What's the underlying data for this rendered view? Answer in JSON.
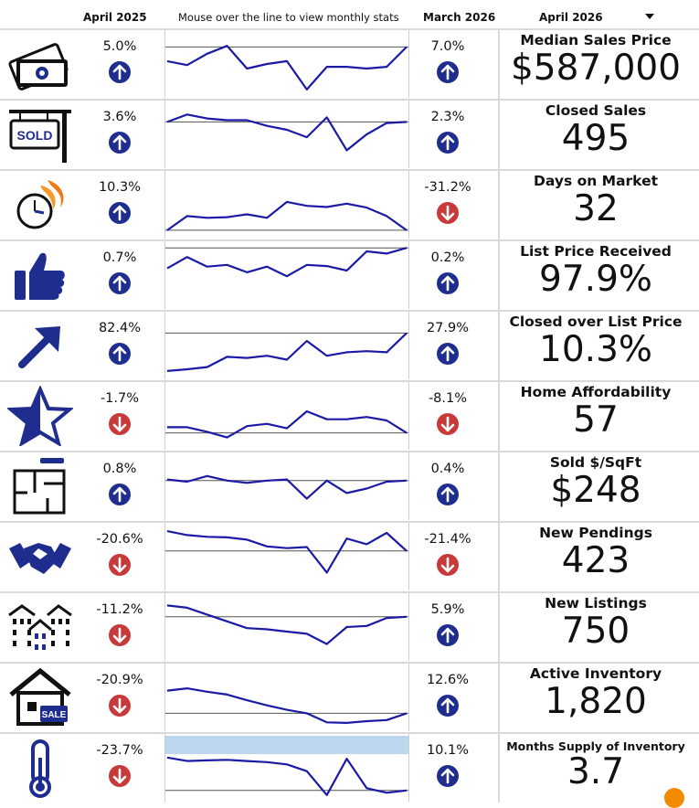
{
  "header": {
    "col_a": "April 2025",
    "spark_hint": "Mouse over the line to view monthly stats",
    "col_b": "March 2026",
    "period_select": "April 2026"
  },
  "colors": {
    "up": "#1f2d8f",
    "down": "#c8393a",
    "line": "#1a1aa6",
    "hover_band": "#bcd6ee"
  },
  "rows": [
    {
      "icon": "money-icon",
      "pct_a": "5.0%",
      "dir_a": "up",
      "pct_b": "7.0%",
      "dir_b": "up",
      "title": "Median Sales Price",
      "value": "$587,000",
      "trend": [
        0.55,
        0.48,
        0.68,
        0.82,
        0.42,
        0.5,
        0.55,
        0.05,
        0.45,
        0.45,
        0.42,
        0.45,
        0.8
      ]
    },
    {
      "icon": "sold-sign-icon",
      "pct_a": "3.6%",
      "dir_a": "up",
      "pct_b": "2.3%",
      "dir_b": "up",
      "title": "Closed Sales",
      "value": "495",
      "trend": [
        0.72,
        0.85,
        0.78,
        0.75,
        0.75,
        0.65,
        0.58,
        0.45,
        0.8,
        0.22,
        0.5,
        0.7,
        0.72
      ]
    },
    {
      "icon": "stopwatch-icon",
      "pct_a": "10.3%",
      "dir_a": "up",
      "pct_b": "-31.2%",
      "dir_b": "down",
      "title": "Days on Market",
      "value": "32",
      "trend": [
        0.05,
        0.3,
        0.27,
        0.28,
        0.33,
        0.27,
        0.55,
        0.48,
        0.46,
        0.52,
        0.45,
        0.3,
        0.05
      ]
    },
    {
      "icon": "thumbs-up-icon",
      "pct_a": "0.7%",
      "dir_a": "up",
      "pct_b": "0.2%",
      "dir_b": "up",
      "title": "List Price Received",
      "value": "97.9%",
      "trend": [
        0.62,
        0.82,
        0.65,
        0.68,
        0.55,
        0.65,
        0.48,
        0.68,
        0.66,
        0.58,
        0.92,
        0.88,
        0.98
      ]
    },
    {
      "icon": "arrow-up-right-icon",
      "pct_a": "82.4%",
      "dir_a": "up",
      "pct_b": "27.9%",
      "dir_b": "up",
      "title": "Closed over List Price",
      "value": "10.3%",
      "trend": [
        0.05,
        0.08,
        0.12,
        0.3,
        0.28,
        0.32,
        0.25,
        0.58,
        0.32,
        0.38,
        0.4,
        0.38,
        0.72
      ]
    },
    {
      "icon": "star-icon",
      "pct_a": "-1.7%",
      "dir_a": "down",
      "pct_b": "-8.1%",
      "dir_b": "down",
      "title": "Home Affordability",
      "value": "57",
      "trend": [
        0.3,
        0.3,
        0.22,
        0.12,
        0.32,
        0.36,
        0.28,
        0.58,
        0.44,
        0.44,
        0.48,
        0.42,
        0.2
      ]
    },
    {
      "icon": "floor-plan-icon",
      "pct_a": "0.8%",
      "dir_a": "up",
      "pct_b": "0.4%",
      "dir_b": "up",
      "title": "Sold $/SqFt",
      "value": "$248",
      "trend": [
        0.62,
        0.58,
        0.68,
        0.6,
        0.56,
        0.6,
        0.62,
        0.28,
        0.6,
        0.38,
        0.46,
        0.58,
        0.6
      ]
    },
    {
      "icon": "handshake-icon",
      "pct_a": "-20.6%",
      "dir_a": "down",
      "pct_b": "-21.4%",
      "dir_b": "down",
      "title": "New Pendings",
      "value": "423",
      "trend": [
        0.95,
        0.88,
        0.85,
        0.84,
        0.8,
        0.68,
        0.65,
        0.67,
        0.22,
        0.82,
        0.72,
        0.92,
        0.6
      ]
    },
    {
      "icon": "buildings-icon",
      "pct_a": "-11.2%",
      "dir_a": "down",
      "pct_b": "5.9%",
      "dir_b": "up",
      "title": "New Listings",
      "value": "750",
      "trend": [
        0.88,
        0.84,
        0.72,
        0.6,
        0.48,
        0.46,
        0.42,
        0.38,
        0.2,
        0.5,
        0.52,
        0.66,
        0.68
      ]
    },
    {
      "icon": "house-sale-icon",
      "pct_a": "-20.9%",
      "dir_a": "down",
      "pct_b": "12.6%",
      "dir_b": "up",
      "title": "Active Inventory",
      "value": "1,820",
      "trend": [
        0.62,
        0.66,
        0.6,
        0.55,
        0.45,
        0.36,
        0.28,
        0.22,
        0.06,
        0.05,
        0.08,
        0.1,
        0.22
      ]
    },
    {
      "icon": "thermometer-icon",
      "pct_a": "-23.7%",
      "dir_a": "down",
      "pct_b": "10.1%",
      "dir_b": "up",
      "title": "Months Supply of Inventory",
      "value": "3.7",
      "trend": [
        0.68,
        0.62,
        0.63,
        0.64,
        0.62,
        0.6,
        0.56,
        0.44,
        0.02,
        0.66,
        0.14,
        0.06,
        0.1
      ]
    }
  ]
}
